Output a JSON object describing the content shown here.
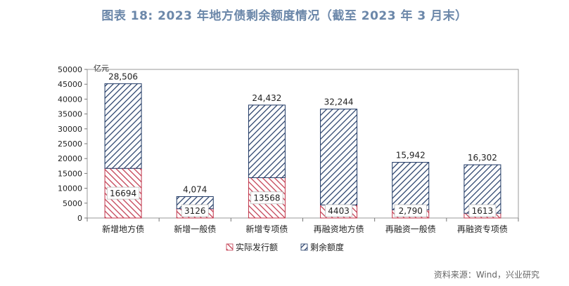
{
  "title": "图表 18: 2023 年地方债剩余额度情况（截至 2023 年 3 月末）",
  "source": "资料来源：Wind，兴业研究",
  "colors": {
    "issued": "#c0354a",
    "remaining": "#1f3864",
    "title": "#6b87a9"
  },
  "chart_data": {
    "type": "bar",
    "stacked": true,
    "unit_label": "亿元",
    "ylim": [
      0,
      50000
    ],
    "yticks": [
      0,
      5000,
      10000,
      15000,
      20000,
      25000,
      30000,
      35000,
      40000,
      45000,
      50000
    ],
    "grid": false,
    "legend_position": "bottom",
    "categories": [
      "新增地方债",
      "新增一般债",
      "新增专项债",
      "再融资地方债",
      "再融资一般债",
      "再融资专项债"
    ],
    "series": [
      {
        "name": "实际发行额",
        "values": [
          16694,
          3126,
          13568,
          4403,
          2790,
          1613
        ],
        "labels": [
          "16694",
          "3126",
          "13568",
          "4403",
          "2,790",
          "1613"
        ]
      },
      {
        "name": "剩余额度",
        "values": [
          28506,
          4074,
          24432,
          32244,
          15942,
          16302
        ],
        "labels": [
          "28,506",
          "4,074",
          "24,432",
          "32,244",
          "15,942",
          "16,302"
        ]
      }
    ]
  }
}
